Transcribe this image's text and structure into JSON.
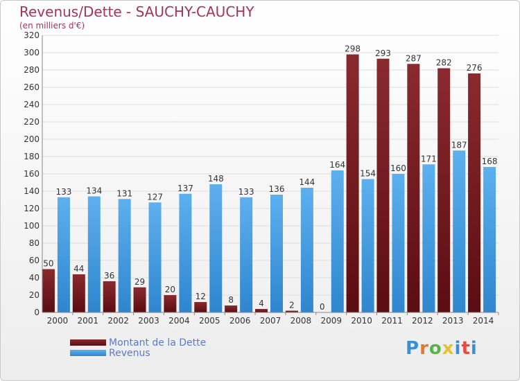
{
  "header": {
    "title": "Revenus/Dette - SAUCHY-CAUCHY",
    "subtitle": "(en milliers d'€)"
  },
  "legend": {
    "items": [
      {
        "label": "Montant de la Dette",
        "color": "#7a1e22"
      },
      {
        "label": "Revenus",
        "color": "#4fa3e3"
      }
    ]
  },
  "logo": {
    "text": "Proxiti",
    "colors": [
      "#3b8fd6",
      "#e8772e",
      "#59b34a",
      "#e8c22e",
      "#3b8fd6",
      "#e84a3c",
      "#3b8fd6"
    ]
  },
  "chart_data": {
    "type": "bar",
    "title": "Revenus/Dette - SAUCHY-CAUCHY",
    "subtitle": "(en milliers d'€)",
    "categories": [
      "2000",
      "2001",
      "2002",
      "2003",
      "2004",
      "2005",
      "2006",
      "2007",
      "2008",
      "2009",
      "2010",
      "2011",
      "2012",
      "2013",
      "2014"
    ],
    "series": [
      {
        "name": "Montant de la Dette",
        "color": "#7a1e22",
        "values": [
          50,
          44,
          36,
          29,
          20,
          12,
          8,
          4,
          2,
          0,
          298,
          293,
          287,
          282,
          276
        ]
      },
      {
        "name": "Revenus",
        "color": "#4fa3e3",
        "values": [
          133,
          134,
          131,
          127,
          137,
          148,
          133,
          136,
          144,
          164,
          154,
          160,
          171,
          187,
          168
        ]
      }
    ],
    "ylim": [
      0,
      320
    ],
    "yticks": [
      0,
      20,
      40,
      60,
      80,
      100,
      120,
      140,
      160,
      180,
      200,
      220,
      240,
      260,
      280,
      300,
      320
    ],
    "grid": true,
    "legend_position": "bottom-left"
  }
}
